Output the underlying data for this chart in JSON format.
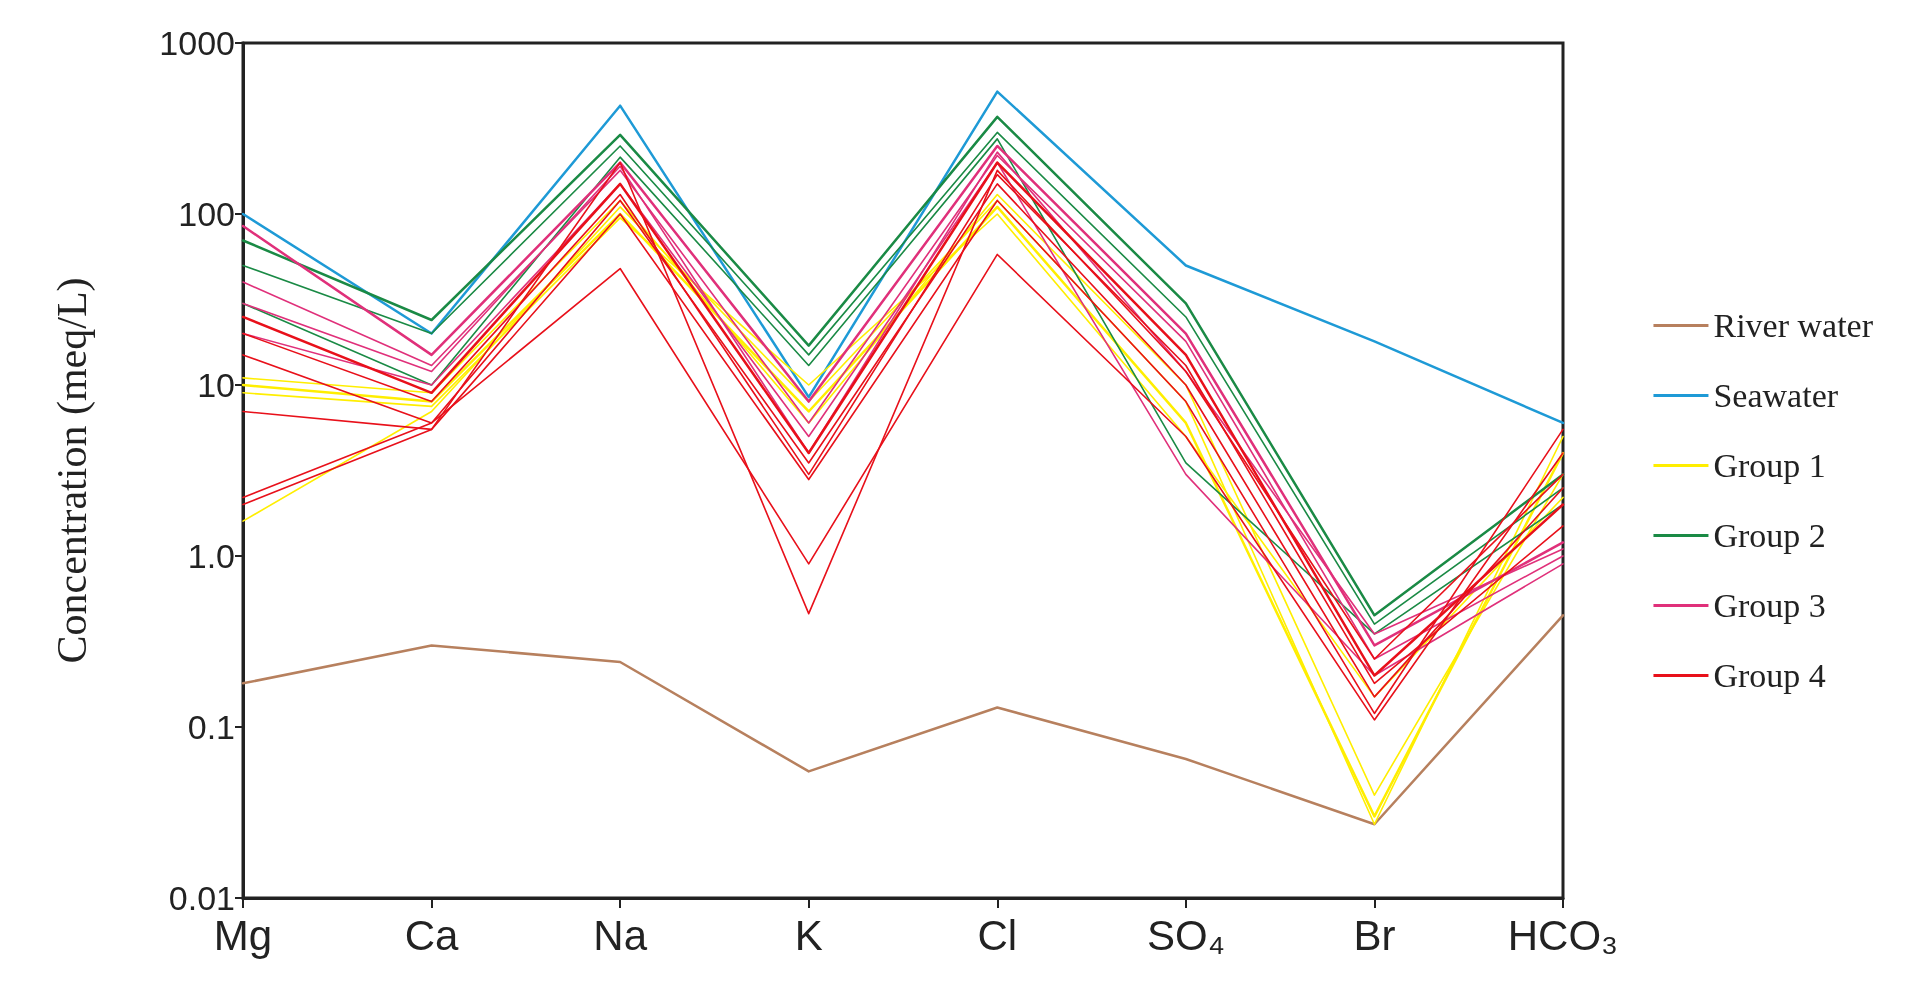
{
  "chart_data": {
    "type": "line",
    "ylabel": "Concentration (meq/L)",
    "categories": [
      "Mg",
      "Ca",
      "Na",
      "K",
      "Cl",
      "SO₄",
      "Br",
      "HCO₃"
    ],
    "log": "y",
    "ylim": [
      0.01,
      1000
    ],
    "yticks": [
      0.01,
      0.1,
      {
        "value": 1,
        "label": "1.0"
      },
      10,
      100,
      1000
    ],
    "legend": "right",
    "marker": "none",
    "series": [
      {
        "name": "River water",
        "color": "#b7805e",
        "values": [
          0.18,
          0.3,
          0.24,
          0.055,
          0.13,
          0.065,
          0.027,
          0.45
        ]
      },
      {
        "name": "Seawater",
        "color": "#1e9ad6",
        "values": [
          100,
          20,
          430,
          8.5,
          520,
          50,
          18,
          6
        ]
      },
      {
        "name": "Group 1",
        "color": "#ffee00",
        "values": [
          10,
          8,
          100,
          7,
          110,
          6,
          0.03,
          4
        ]
      },
      {
        "color": "#ffee00",
        "values": [
          1.6,
          7,
          110,
          8,
          120,
          8,
          0.027,
          5
        ]
      },
      {
        "color": "#ffee00",
        "values": [
          11,
          9,
          120,
          6,
          130,
          10,
          0.04,
          3
        ]
      },
      {
        "color": "#ffee00",
        "values": [
          9,
          7.5,
          95,
          10,
          100,
          5,
          0.15,
          2.2
        ]
      },
      {
        "name": "Group 2",
        "color": "#1a8a45",
        "values": [
          70,
          24,
          290,
          17,
          370,
          30,
          0.45,
          3
        ]
      },
      {
        "color": "#1a8a45",
        "values": [
          50,
          20,
          250,
          15,
          300,
          25,
          0.4,
          2.5
        ]
      },
      {
        "color": "#1a8a45",
        "values": [
          30,
          10,
          215,
          13,
          275,
          3.5,
          0.35,
          2
        ]
      },
      {
        "name": "Group 3",
        "color": "#e0307a",
        "values": [
          85,
          15,
          200,
          8,
          250,
          20,
          0.3,
          1.2
        ]
      },
      {
        "color": "#e0307a",
        "values": [
          40,
          13,
          180,
          6,
          220,
          18,
          0.25,
          1
        ]
      },
      {
        "color": "#e0307a",
        "values": [
          20,
          10,
          150,
          5,
          200,
          3,
          0.2,
          0.9
        ]
      },
      {
        "color": "#e0307a",
        "values": [
          30,
          12,
          190,
          4,
          230,
          12,
          0.35,
          1.1
        ]
      },
      {
        "name": "Group 4",
        "color": "#e8101a",
        "values": [
          25,
          9,
          150,
          4,
          200,
          15,
          0.2,
          2
        ]
      },
      {
        "color": "#e8101a",
        "values": [
          15,
          6,
          120,
          3.5,
          150,
          10,
          0.15,
          2.5
        ]
      },
      {
        "color": "#e8101a",
        "values": [
          7,
          5.5,
          100,
          2.8,
          120,
          8,
          0.12,
          5.5
        ]
      },
      {
        "color": "#e8101a",
        "values": [
          2.2,
          6,
          48,
          0.9,
          58,
          5,
          0.11,
          4
        ]
      },
      {
        "color": "#e8101a",
        "values": [
          2,
          5.5,
          200,
          0.46,
          180,
          12,
          0.25,
          3
        ]
      },
      {
        "color": "#e8101a",
        "values": [
          20,
          8,
          130,
          3,
          170,
          13,
          0.18,
          1.5
        ]
      }
    ]
  }
}
